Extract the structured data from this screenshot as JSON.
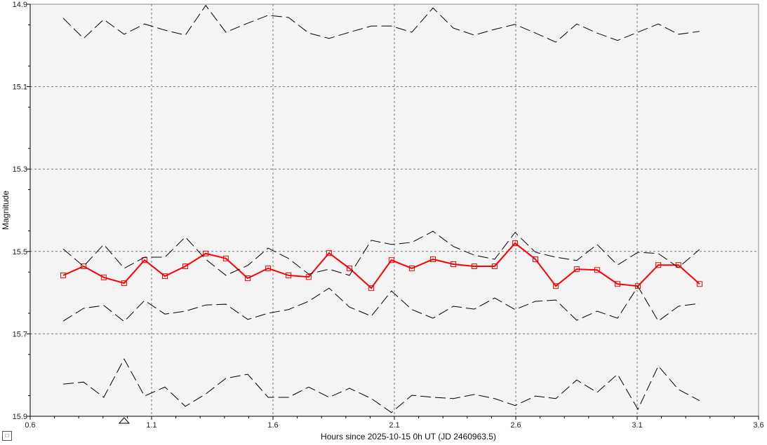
{
  "chart_data": {
    "type": "line",
    "xlabel": "Hours since 2025-10-15 0h UT (JD 2460963.5)",
    "ylabel": "Magnitude",
    "xlim": [
      0.6,
      3.6
    ],
    "ylim": [
      14.9,
      15.9
    ],
    "y_inverted": true,
    "grid": true,
    "x_ticks": [
      "0.6",
      "1.1",
      "1.6",
      "2.1",
      "2.6",
      "3.1",
      "3.6"
    ],
    "y_ticks": [
      "14.9",
      "15.1",
      "15.3",
      "15.5",
      "15.7",
      "15.9"
    ],
    "x": [
      0.736,
      0.82,
      0.903,
      0.987,
      1.071,
      1.155,
      1.239,
      1.323,
      1.406,
      1.496,
      1.58,
      1.664,
      1.747,
      1.831,
      1.915,
      2.005,
      2.088,
      2.172,
      2.259,
      2.343,
      2.429,
      2.513,
      2.597,
      2.681,
      2.765,
      2.851,
      2.935,
      3.019,
      3.103,
      3.187,
      3.27,
      3.357
    ],
    "series": [
      {
        "color": "#ff0000",
        "style": "solid-square-markers",
        "values": [
          15.558,
          15.536,
          15.563,
          15.577,
          15.521,
          15.56,
          15.536,
          15.505,
          15.517,
          15.565,
          15.541,
          15.558,
          15.562,
          15.504,
          15.541,
          15.589,
          15.521,
          15.541,
          15.519,
          15.531,
          15.536,
          15.536,
          15.48,
          15.519,
          15.584,
          15.543,
          15.545,
          15.579,
          15.584,
          15.533,
          15.533,
          15.579
        ]
      },
      {
        "color": "#000000",
        "style": "dashed",
        "values": [
          14.934,
          14.983,
          14.937,
          14.973,
          14.948,
          14.963,
          14.975,
          14.903,
          14.968,
          14.946,
          14.927,
          14.932,
          14.97,
          14.983,
          14.968,
          14.953,
          14.953,
          14.968,
          14.909,
          14.958,
          14.975,
          14.961,
          14.949,
          14.97,
          14.992,
          14.948,
          14.97,
          14.988,
          14.968,
          14.948,
          14.973,
          14.966
        ]
      },
      {
        "color": "#000000",
        "style": "dashed",
        "values": [
          15.494,
          15.536,
          15.483,
          15.541,
          15.514,
          15.514,
          15.465,
          15.519,
          15.558,
          15.534,
          15.492,
          15.517,
          15.555,
          15.543,
          15.558,
          15.473,
          15.483,
          15.478,
          15.451,
          15.488,
          15.509,
          15.519,
          15.454,
          15.502,
          15.514,
          15.522,
          15.483,
          15.533,
          15.502,
          15.505,
          15.539,
          15.495
        ]
      },
      {
        "color": "#000000",
        "style": "dashed",
        "values": [
          15.669,
          15.638,
          15.631,
          15.67,
          15.619,
          15.652,
          15.645,
          15.63,
          15.628,
          15.665,
          15.65,
          15.641,
          15.621,
          15.589,
          15.635,
          15.657,
          15.596,
          15.641,
          15.662,
          15.633,
          15.64,
          15.613,
          15.641,
          15.621,
          15.618,
          15.667,
          15.645,
          15.662,
          15.585,
          15.669,
          15.633,
          15.626
        ]
      },
      {
        "color": "#000000",
        "style": "dashed",
        "values": [
          15.822,
          15.817,
          15.854,
          15.761,
          15.851,
          15.829,
          15.876,
          15.846,
          15.808,
          15.798,
          15.854,
          15.854,
          15.829,
          15.854,
          15.832,
          15.857,
          15.891,
          15.849,
          15.854,
          15.857,
          15.847,
          15.857,
          15.874,
          15.851,
          15.857,
          15.812,
          15.842,
          15.798,
          15.883,
          15.778,
          15.835,
          15.862
        ]
      }
    ],
    "marker_x": 0.987
  },
  "corner_button": "□",
  "colors": {
    "plot_bg": "#f4f4f4",
    "grid": "#777777",
    "accent": "#ff0000"
  }
}
